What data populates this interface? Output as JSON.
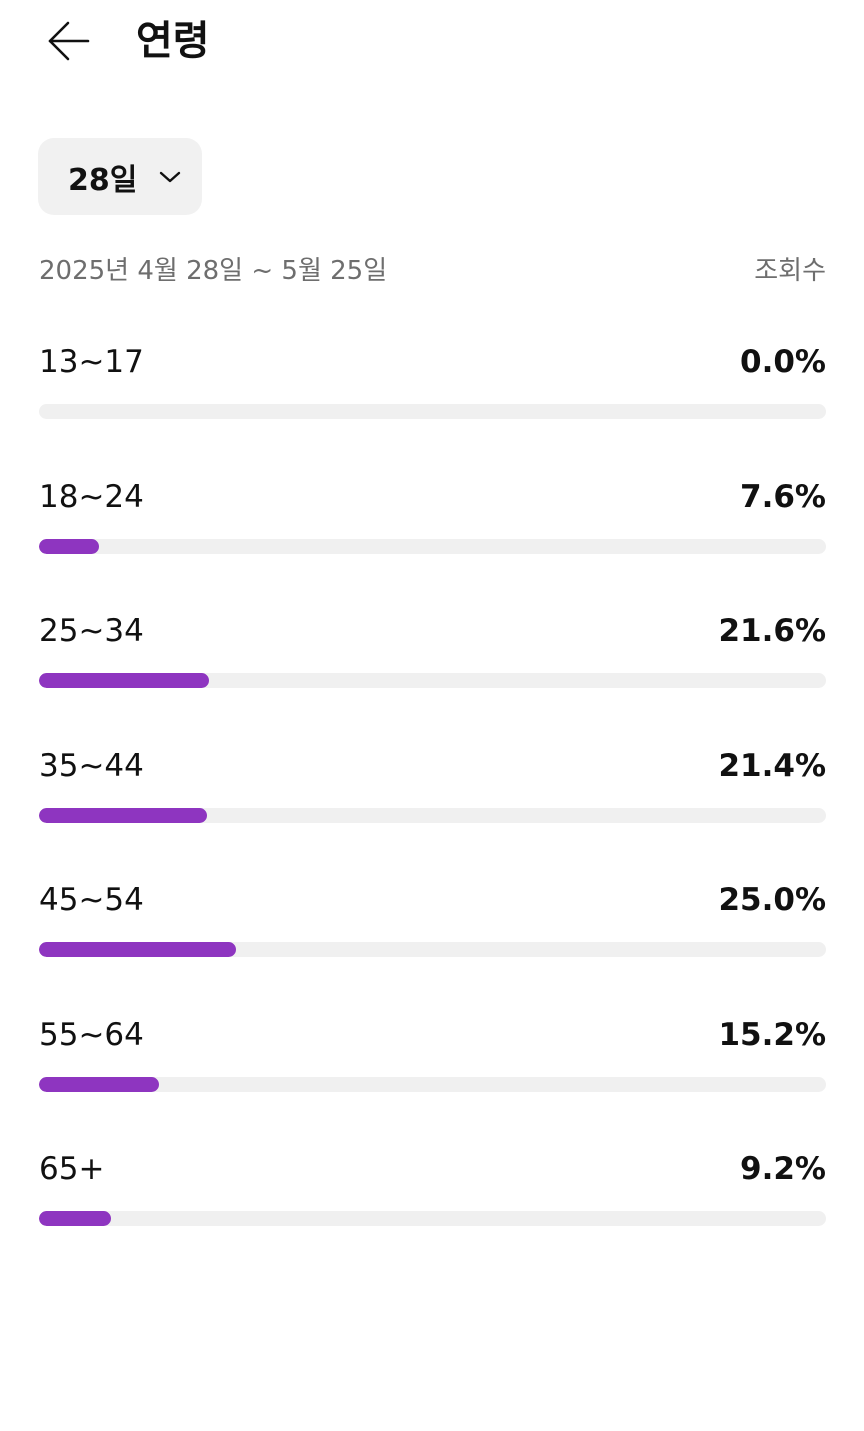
{
  "header": {
    "title": "연령",
    "back_icon": "arrow-left-icon"
  },
  "filter": {
    "period_label": "28일",
    "dropdown_icon": "chevron-down-icon"
  },
  "range": {
    "date_text": "2025년 4월 28일 ~ 5월 25일",
    "metric_label": "조회수"
  },
  "colors": {
    "bar_fill": "#8e35c0",
    "bar_track": "#f0f0f0"
  },
  "chart_data": {
    "type": "bar",
    "categories": [
      "13~17",
      "18~24",
      "25~34",
      "35~44",
      "45~54",
      "55~64",
      "65+"
    ],
    "values": [
      0.0,
      7.6,
      21.6,
      21.4,
      25.0,
      15.2,
      9.2
    ],
    "value_labels": [
      "0.0%",
      "7.6%",
      "21.6%",
      "21.4%",
      "25.0%",
      "15.2%",
      "9.2%"
    ],
    "unit": "%",
    "ylim": [
      0,
      100
    ]
  }
}
